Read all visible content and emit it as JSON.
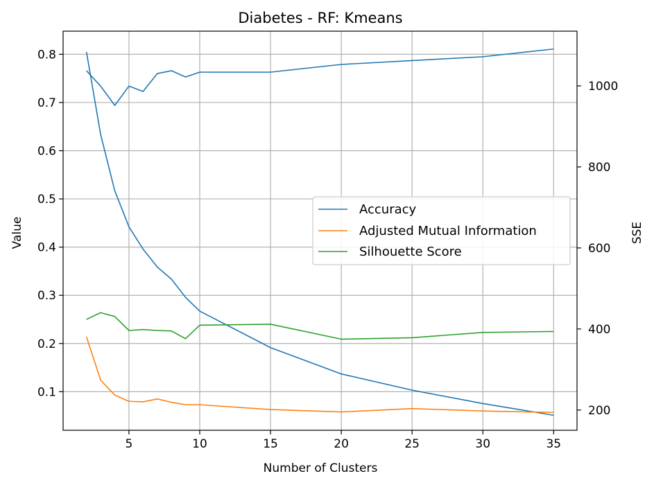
{
  "chart_data": {
    "type": "line",
    "title": "Diabetes - RF: Kmeans",
    "xlabel": "Number of Clusters",
    "ylabel": "Value",
    "y2label": "SSE",
    "xlim": [
      0.35,
      36.65
    ],
    "ylim": [
      0.02,
      0.848
    ],
    "y2lim": [
      150,
      1135
    ],
    "xticks": [
      5,
      10,
      15,
      20,
      25,
      30,
      35
    ],
    "yticks": [
      0.1,
      0.2,
      0.3,
      0.4,
      0.5,
      0.6,
      0.7,
      0.8
    ],
    "y2ticks": [
      200,
      400,
      600,
      800,
      1000
    ],
    "grid": true,
    "legend_position": "center-right",
    "x": [
      2,
      3,
      4,
      5,
      6,
      7,
      8,
      9,
      10,
      15,
      20,
      25,
      30,
      35
    ],
    "series": [
      {
        "name": "Accuracy",
        "color": "#1f77b4",
        "axis": "left",
        "values": [
          0.766,
          0.734,
          0.694,
          0.734,
          0.723,
          0.76,
          0.766,
          0.753,
          0.763,
          0.763,
          0.779,
          0.787,
          0.795,
          0.811
        ]
      },
      {
        "name": "Adjusted Mutual Information",
        "color": "#ff7f0e",
        "axis": "left",
        "values": [
          0.214,
          0.124,
          0.093,
          0.08,
          0.079,
          0.085,
          0.078,
          0.073,
          0.073,
          0.063,
          0.058,
          0.065,
          0.06,
          0.057
        ]
      },
      {
        "name": "Silhouette Score",
        "color": "#2ca02c",
        "axis": "left",
        "values": [
          0.25,
          0.264,
          0.256,
          0.227,
          0.229,
          0.227,
          0.226,
          0.21,
          0.238,
          0.24,
          0.209,
          0.212,
          0.223,
          0.225
        ]
      }
    ],
    "sse_series": {
      "name": "",
      "color": "#1f77b4",
      "axis": "right",
      "values": [
        1084,
        880,
        741,
        652,
        597,
        553,
        523,
        478,
        444,
        354,
        289,
        249,
        216,
        187
      ]
    }
  }
}
